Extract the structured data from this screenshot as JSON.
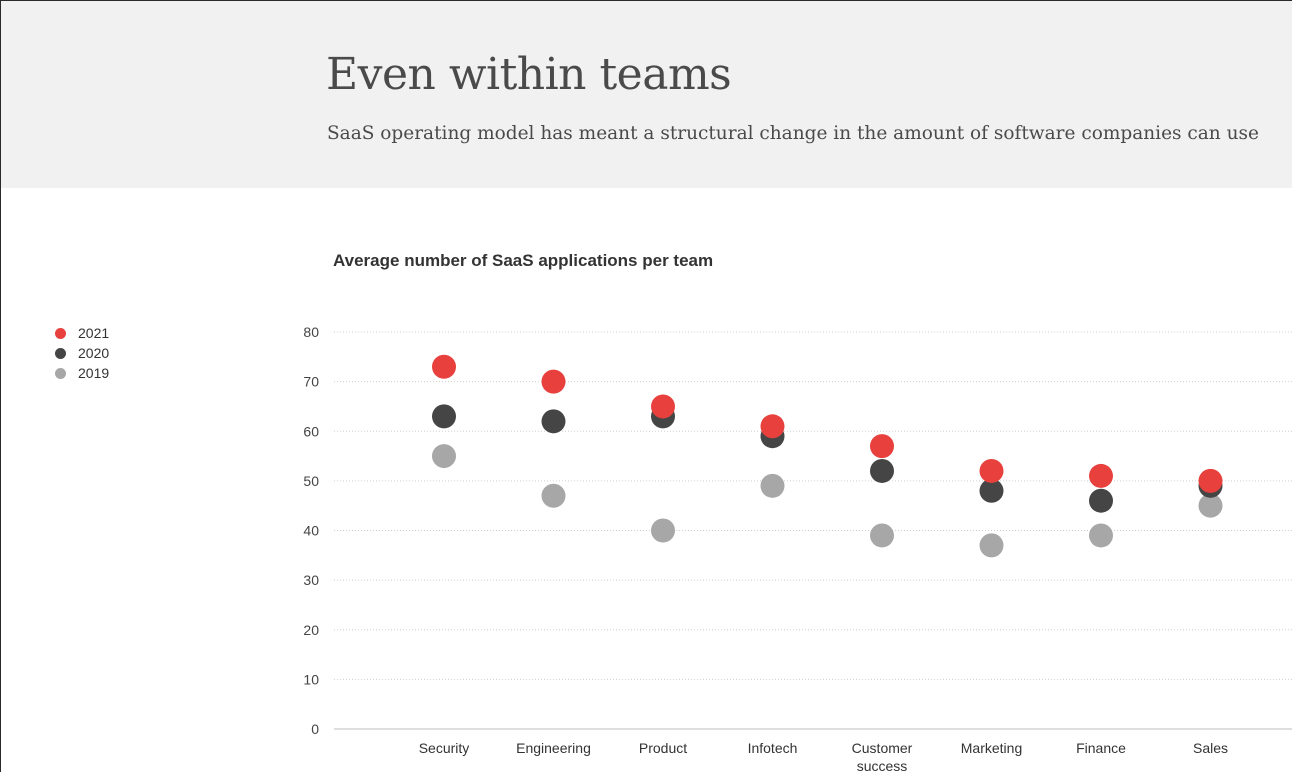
{
  "header": {
    "title": "Even within teams",
    "subtitle": "SaaS operating model has meant a structural change in the amount of software companies can use"
  },
  "colors": {
    "2021": "#e8413d",
    "2020": "#454545",
    "2019": "#a7a7a7"
  },
  "chart_data": {
    "type": "scatter",
    "title": "Average number of SaaS applications per team",
    "xlabel": "",
    "ylabel": "",
    "ylim": [
      0,
      80
    ],
    "yticks": [
      0,
      10,
      20,
      30,
      40,
      50,
      60,
      70,
      80
    ],
    "grid": true,
    "legend_position": "left",
    "categories": [
      [
        "Security"
      ],
      [
        "Engineering"
      ],
      [
        "Product"
      ],
      [
        "Infotech"
      ],
      [
        "Customer",
        "success"
      ],
      [
        "Marketing"
      ],
      [
        "Finance"
      ],
      [
        "Sales"
      ]
    ],
    "series": [
      {
        "name": "2019",
        "values": [
          55,
          47,
          40,
          49,
          39,
          37,
          39,
          45
        ]
      },
      {
        "name": "2020",
        "values": [
          63,
          62,
          63,
          59,
          52,
          48,
          46,
          49
        ]
      },
      {
        "name": "2021",
        "values": [
          73,
          70,
          65,
          61,
          57,
          52,
          51,
          50
        ]
      }
    ],
    "legend_order": [
      "2021",
      "2020",
      "2019"
    ]
  }
}
